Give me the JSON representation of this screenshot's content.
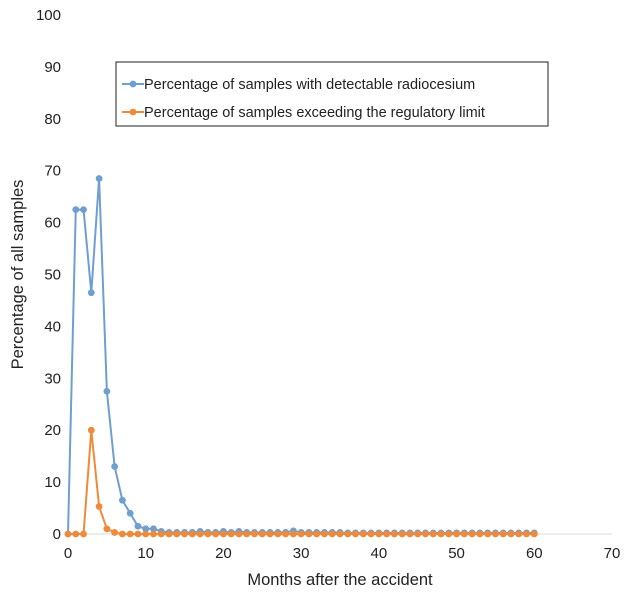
{
  "chart_data": {
    "type": "line",
    "title": "",
    "xlabel": "Months after the accident",
    "ylabel": "Percentage of all samples",
    "xlim": [
      0,
      70
    ],
    "ylim": [
      0,
      100
    ],
    "x_ticks": [
      0,
      10,
      20,
      30,
      40,
      50,
      60,
      70
    ],
    "y_ticks": [
      0,
      10,
      20,
      30,
      40,
      50,
      60,
      70,
      80,
      90,
      100
    ],
    "grid": false,
    "legend_position": "upper-center",
    "x": [
      0,
      1,
      2,
      3,
      4,
      5,
      6,
      7,
      8,
      9,
      10,
      11,
      12,
      13,
      14,
      15,
      16,
      17,
      18,
      19,
      20,
      21,
      22,
      23,
      24,
      25,
      26,
      27,
      28,
      29,
      30,
      31,
      32,
      33,
      34,
      35,
      36,
      37,
      38,
      39,
      40,
      41,
      42,
      43,
      44,
      45,
      46,
      47,
      48,
      49,
      50,
      51,
      52,
      53,
      54,
      55,
      56,
      57,
      58,
      59,
      60
    ],
    "series": [
      {
        "name": "Percentage of samples with detectable radiocesium",
        "color": "#6f9fd0",
        "values": [
          0,
          62.5,
          62.5,
          46.5,
          68.5,
          27.5,
          13,
          6.5,
          4,
          1.5,
          1,
          1,
          0.5,
          0.3,
          0.3,
          0.3,
          0.3,
          0.5,
          0.3,
          0.3,
          0.5,
          0.3,
          0.5,
          0.3,
          0.3,
          0.3,
          0.3,
          0.3,
          0.3,
          0.6,
          0.3,
          0.3,
          0.3,
          0.3,
          0.3,
          0.3,
          0.2,
          0.2,
          0.2,
          0.2,
          0.2,
          0.2,
          0.2,
          0.2,
          0.2,
          0.2,
          0.2,
          0.2,
          0.2,
          0.2,
          0.2,
          0.2,
          0.2,
          0.2,
          0.2,
          0.2,
          0.2,
          0.2,
          0.2,
          0.2,
          0.2
        ]
      },
      {
        "name": "Percentage of samples exceeding the regulatory limit",
        "color": "#ef8a3a",
        "values": [
          0,
          0,
          0,
          20,
          5.3,
          1,
          0.3,
          0,
          0,
          0,
          0,
          0,
          0,
          0,
          0,
          0,
          0,
          0,
          0,
          0,
          0,
          0,
          0,
          0,
          0,
          0,
          0,
          0,
          0,
          0,
          0,
          0,
          0,
          0,
          0,
          0,
          0,
          0,
          0,
          0,
          0,
          0,
          0,
          0,
          0,
          0,
          0,
          0,
          0,
          0,
          0,
          0,
          0,
          0,
          0,
          0,
          0,
          0,
          0,
          0,
          0
        ]
      }
    ]
  }
}
